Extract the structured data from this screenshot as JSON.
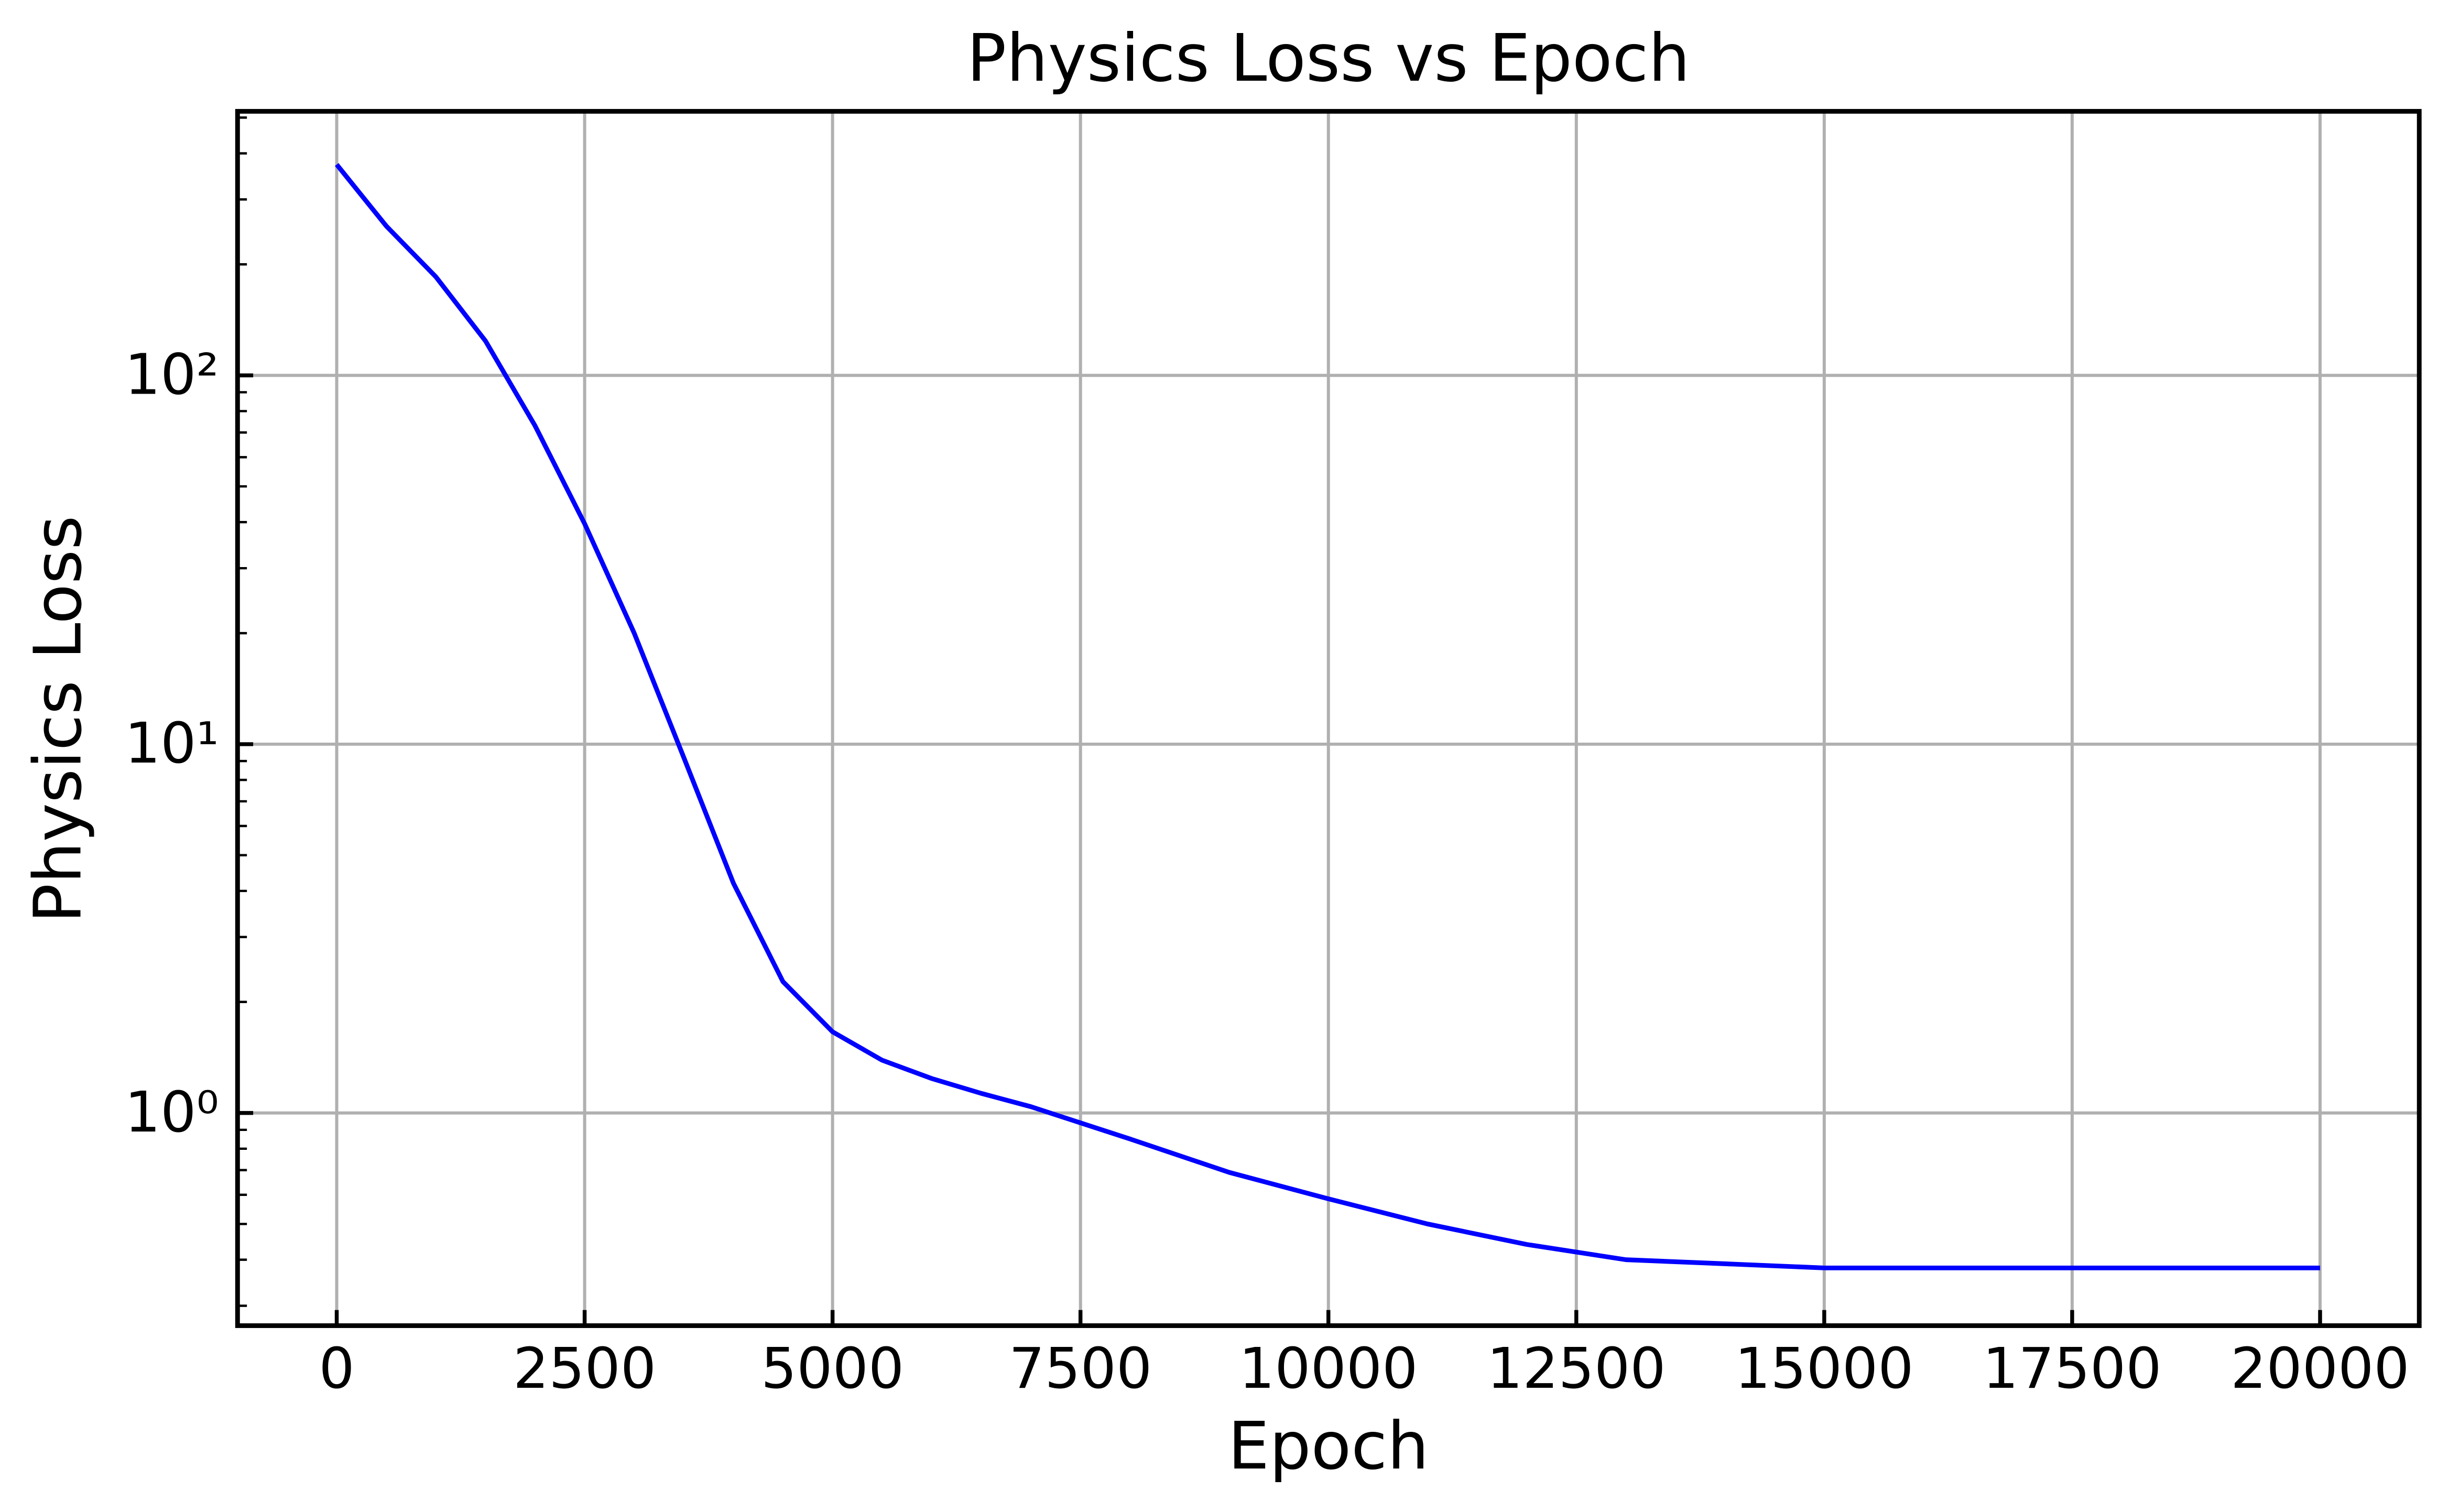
{
  "chart_data": {
    "type": "line",
    "title": "Physics Loss vs Epoch",
    "x_label": "Epoch",
    "y_label": "Physics Loss",
    "log_y": true,
    "grid": true,
    "xlim": [
      -1000,
      21000
    ],
    "xticks": [
      0,
      2500,
      5000,
      7500,
      10000,
      12500,
      15000,
      17500,
      20000
    ],
    "ylim": [
      0.265,
      520
    ],
    "yticks": [
      {
        "value": 1,
        "label": "10⁰"
      },
      {
        "value": 10,
        "label": "10¹"
      },
      {
        "value": 100,
        "label": "10²"
      }
    ],
    "x": [
      0,
      500,
      1000,
      1500,
      2000,
      2500,
      3000,
      3500,
      4000,
      4500,
      5000,
      5500,
      6000,
      6500,
      7000,
      7500,
      8000,
      9000,
      10000,
      11000,
      12000,
      13000,
      14000,
      15000,
      16000,
      17000,
      18000,
      19000,
      20000
    ],
    "series": [
      {
        "name": "Physics Loss",
        "color": "#0000ff",
        "values": [
          373,
          254,
          185,
          124,
          73,
          39.6,
          20,
          9.2,
          4.2,
          2.27,
          1.66,
          1.39,
          1.24,
          1.13,
          1.04,
          0.94,
          0.85,
          0.69,
          0.585,
          0.5,
          0.44,
          0.4,
          0.39,
          0.38,
          0.38,
          0.38,
          0.38,
          0.38,
          0.38
        ]
      }
    ]
  }
}
